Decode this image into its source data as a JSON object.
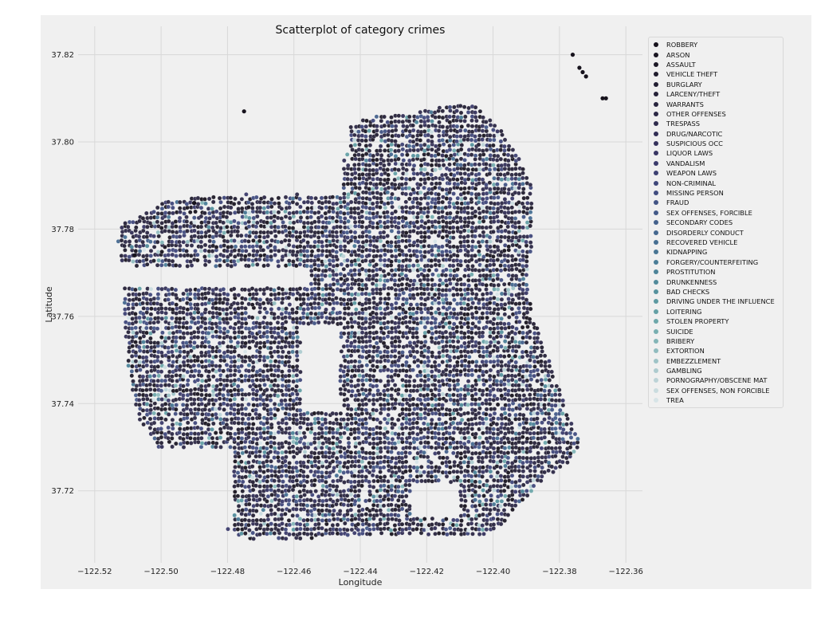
{
  "chart_data": {
    "type": "scatter",
    "title": "Scatterplot of category crimes",
    "xlabel": "Longitude",
    "ylabel": "Latitude",
    "xlim": [
      -122.525,
      -122.355
    ],
    "ylim": [
      37.7035,
      37.8265
    ],
    "xticks": [
      -122.52,
      -122.5,
      -122.48,
      -122.46,
      -122.44,
      -122.42,
      -122.4,
      -122.38,
      -122.36
    ],
    "yticks": [
      37.72,
      37.74,
      37.76,
      37.78,
      37.8,
      37.82
    ],
    "xtick_labels": [
      "−122.52",
      "−122.50",
      "−122.48",
      "−122.46",
      "−122.44",
      "−122.42",
      "−122.40",
      "−122.38",
      "−122.36"
    ],
    "ytick_labels": [
      "37.72",
      "37.74",
      "37.76",
      "37.78",
      "37.80",
      "37.82"
    ],
    "grid": true,
    "legend_position": "top-right",
    "series": [
      {
        "name": "ROBBERY",
        "color": "#17131d"
      },
      {
        "name": "ARSON",
        "color": "#1a1622"
      },
      {
        "name": "ASSAULT",
        "color": "#1d1927"
      },
      {
        "name": "VEHICLE THEFT",
        "color": "#201c2d"
      },
      {
        "name": "BURGLARY",
        "color": "#231f33"
      },
      {
        "name": "LARCENY/THEFT",
        "color": "#262239"
      },
      {
        "name": "WARRANTS",
        "color": "#29253f"
      },
      {
        "name": "OTHER OFFENSES",
        "color": "#2c2846"
      },
      {
        "name": "TRESPASS",
        "color": "#2f2b4d"
      },
      {
        "name": "DRUG/NARCOTIC",
        "color": "#322e55"
      },
      {
        "name": "SUSPICIOUS OCC",
        "color": "#35325c"
      },
      {
        "name": "LIQUOR LAWS",
        "color": "#383664"
      },
      {
        "name": "VANDALISM",
        "color": "#3b3b6c"
      },
      {
        "name": "WEAPON LAWS",
        "color": "#3d4173"
      },
      {
        "name": "NON-CRIMINAL",
        "color": "#3f477a"
      },
      {
        "name": "MISSING PERSON",
        "color": "#414d80"
      },
      {
        "name": "FRAUD",
        "color": "#425485"
      },
      {
        "name": "SEX OFFENSES, FORCIBLE",
        "color": "#435a89"
      },
      {
        "name": "SECONDARY CODES",
        "color": "#44618c"
      },
      {
        "name": "DISORDERLY CONDUCT",
        "color": "#45688f"
      },
      {
        "name": "RECOVERED VEHICLE",
        "color": "#466f92"
      },
      {
        "name": "KIDNAPPING",
        "color": "#487694"
      },
      {
        "name": "FORGERY/COUNTERFEITING",
        "color": "#4a7d97"
      },
      {
        "name": "PROSTITUTION",
        "color": "#4d8499"
      },
      {
        "name": "DRUNKENNESS",
        "color": "#518b9b"
      },
      {
        "name": "BAD CHECKS",
        "color": "#56929e"
      },
      {
        "name": "DRIVING UNDER THE INFLUENCE",
        "color": "#5c99a1"
      },
      {
        "name": "LOITERING",
        "color": "#64a0a5"
      },
      {
        "name": "STOLEN PROPERTY",
        "color": "#6da7aa"
      },
      {
        "name": "SUICIDE",
        "color": "#77aeb0"
      },
      {
        "name": "BRIBERY",
        "color": "#83b5b7"
      },
      {
        "name": "EXTORTION",
        "color": "#90bcbf"
      },
      {
        "name": "EMBEZZLEMENT",
        "color": "#9ec3c7"
      },
      {
        "name": "GAMBLING",
        "color": "#adcbcf"
      },
      {
        "name": "PORNOGRAPHY/OBSCENE MAT",
        "color": "#bcd3d7"
      },
      {
        "name": "SEX OFFENSES, NON FORCIBLE",
        "color": "#cadcdf"
      },
      {
        "name": "TREA",
        "color": "#d7e4e7"
      }
    ]
  }
}
